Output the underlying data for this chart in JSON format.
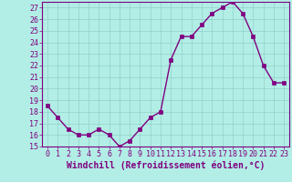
{
  "x": [
    0,
    1,
    2,
    3,
    4,
    5,
    6,
    7,
    8,
    9,
    10,
    11,
    12,
    13,
    14,
    15,
    16,
    17,
    18,
    19,
    20,
    21,
    22,
    23
  ],
  "y": [
    18.5,
    17.5,
    16.5,
    16.0,
    16.0,
    16.5,
    16.0,
    15.0,
    15.5,
    16.5,
    17.5,
    18.0,
    22.5,
    24.5,
    24.5,
    25.5,
    26.5,
    27.0,
    27.5,
    26.5,
    24.5,
    22.0,
    20.5,
    20.5
  ],
  "line_color": "#800080",
  "marker": "s",
  "markersize": 2.2,
  "linewidth": 1.0,
  "bg_color": "#b2eee6",
  "grid_color": "#90d0c8",
  "xlabel": "Windchill (Refroidissement éolien,°C)",
  "ylim": [
    15,
    27.5
  ],
  "xlim": [
    -0.5,
    23.5
  ],
  "yticks": [
    15,
    16,
    17,
    18,
    19,
    20,
    21,
    22,
    23,
    24,
    25,
    26,
    27
  ],
  "xticks": [
    0,
    1,
    2,
    3,
    4,
    5,
    6,
    7,
    8,
    9,
    10,
    11,
    12,
    13,
    14,
    15,
    16,
    17,
    18,
    19,
    20,
    21,
    22,
    23
  ],
  "tick_color": "#800080",
  "label_color": "#800080",
  "xlabel_fontsize": 7.0,
  "tick_fontsize": 6.0,
  "spine_color": "#800080"
}
